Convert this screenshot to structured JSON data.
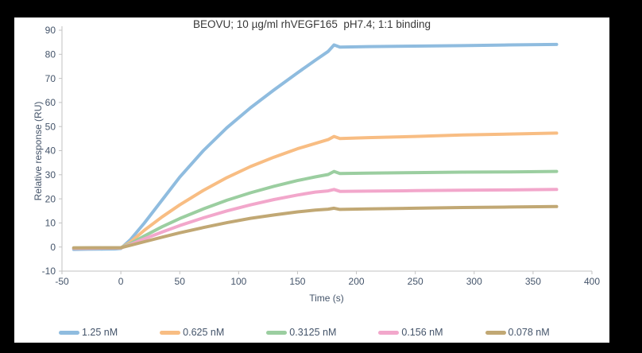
{
  "window": {
    "frame_color": "#000000",
    "panel_color": "#ffffff"
  },
  "chart_data": {
    "type": "line",
    "title": "BEOVU; 10 µg/ml rhVEGF165  pH7.4; 1:1 binding",
    "xlabel": "Time (s)",
    "ylabel": "Relative response (RU)",
    "xlim": [
      -50,
      400
    ],
    "ylim": [
      -10,
      90
    ],
    "x_ticks": [
      -50,
      0,
      50,
      100,
      150,
      200,
      250,
      300,
      350,
      400
    ],
    "y_ticks": [
      -10,
      0,
      10,
      20,
      30,
      40,
      50,
      60,
      70,
      80,
      90
    ],
    "grid": false,
    "legend_position": "bottom",
    "axis_color": "#C2C2C2",
    "tick_label_color": "#44546A",
    "title_color": "#383838",
    "line_width": 4,
    "series": [
      {
        "name": "1.25 nM",
        "color": "#8FBCDF",
        "points": [
          [
            -40,
            -1.0
          ],
          [
            -28,
            -0.9
          ],
          [
            -15,
            -0.85
          ],
          [
            -5,
            -0.8
          ],
          [
            0,
            -0.6
          ],
          [
            8,
            3.0
          ],
          [
            20,
            10.0
          ],
          [
            35,
            19.5
          ],
          [
            50,
            29.0
          ],
          [
            70,
            40.0
          ],
          [
            90,
            49.5
          ],
          [
            110,
            57.8
          ],
          [
            130,
            65.2
          ],
          [
            150,
            72.3
          ],
          [
            165,
            77.5
          ],
          [
            176,
            81.2
          ],
          [
            181,
            83.9
          ],
          [
            186,
            83.0
          ],
          [
            210,
            83.2
          ],
          [
            250,
            83.4
          ],
          [
            290,
            83.6
          ],
          [
            330,
            83.9
          ],
          [
            370,
            84.1
          ]
        ]
      },
      {
        "name": "0.625 nM",
        "color": "#F8BD83",
        "points": [
          [
            -40,
            -0.5
          ],
          [
            -25,
            -0.45
          ],
          [
            -10,
            -0.4
          ],
          [
            0,
            -0.35
          ],
          [
            8,
            2.0
          ],
          [
            20,
            7.0
          ],
          [
            35,
            12.5
          ],
          [
            50,
            17.5
          ],
          [
            70,
            23.5
          ],
          [
            90,
            28.8
          ],
          [
            110,
            33.4
          ],
          [
            130,
            37.3
          ],
          [
            150,
            40.8
          ],
          [
            165,
            43.0
          ],
          [
            176,
            44.6
          ],
          [
            181,
            45.9
          ],
          [
            186,
            45.0
          ],
          [
            210,
            45.4
          ],
          [
            250,
            45.9
          ],
          [
            290,
            46.5
          ],
          [
            330,
            46.9
          ],
          [
            370,
            47.3
          ]
        ]
      },
      {
        "name": "0.3125 nM",
        "color": "#9BCEA0",
        "points": [
          [
            -40,
            -0.4
          ],
          [
            -25,
            -0.35
          ],
          [
            -10,
            -0.3
          ],
          [
            0,
            -0.3
          ],
          [
            8,
            1.4
          ],
          [
            20,
            4.6
          ],
          [
            35,
            8.4
          ],
          [
            50,
            11.8
          ],
          [
            70,
            15.8
          ],
          [
            90,
            19.4
          ],
          [
            110,
            22.5
          ],
          [
            130,
            25.2
          ],
          [
            150,
            27.6
          ],
          [
            165,
            29.1
          ],
          [
            176,
            30.1
          ],
          [
            181,
            31.4
          ],
          [
            186,
            30.5
          ],
          [
            210,
            30.7
          ],
          [
            250,
            30.9
          ],
          [
            290,
            31.1
          ],
          [
            330,
            31.2
          ],
          [
            370,
            31.4
          ]
        ]
      },
      {
        "name": "0.156 nM",
        "color": "#F2A7CB",
        "points": [
          [
            -40,
            -0.5
          ],
          [
            -25,
            -0.45
          ],
          [
            -10,
            -0.4
          ],
          [
            0,
            -0.35
          ],
          [
            8,
            1.0
          ],
          [
            20,
            3.4
          ],
          [
            35,
            6.2
          ],
          [
            50,
            8.9
          ],
          [
            70,
            12.1
          ],
          [
            90,
            15.0
          ],
          [
            110,
            17.5
          ],
          [
            130,
            19.7
          ],
          [
            150,
            21.6
          ],
          [
            165,
            22.8
          ],
          [
            176,
            23.3
          ],
          [
            181,
            23.9
          ],
          [
            186,
            23.1
          ],
          [
            210,
            23.2
          ],
          [
            250,
            23.4
          ],
          [
            290,
            23.6
          ],
          [
            330,
            23.7
          ],
          [
            370,
            23.9
          ]
        ]
      },
      {
        "name": "0.078 nM",
        "color": "#C1A874",
        "points": [
          [
            -40,
            -0.35
          ],
          [
            -25,
            -0.3
          ],
          [
            -10,
            -0.3
          ],
          [
            0,
            -0.25
          ],
          [
            8,
            0.7
          ],
          [
            20,
            2.2
          ],
          [
            35,
            4.1
          ],
          [
            50,
            5.9
          ],
          [
            70,
            8.1
          ],
          [
            90,
            10.1
          ],
          [
            110,
            11.9
          ],
          [
            130,
            13.3
          ],
          [
            150,
            14.6
          ],
          [
            165,
            15.3
          ],
          [
            176,
            15.7
          ],
          [
            181,
            16.1
          ],
          [
            186,
            15.6
          ],
          [
            210,
            15.8
          ],
          [
            250,
            16.1
          ],
          [
            290,
            16.4
          ],
          [
            330,
            16.6
          ],
          [
            370,
            16.8
          ]
        ]
      }
    ]
  }
}
